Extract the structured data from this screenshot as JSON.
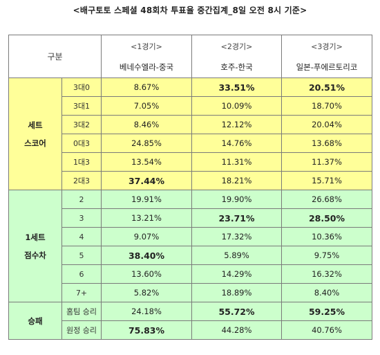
{
  "title": "<배구토토 스페셜 48회차 투표율 중간집계_8일 오전 8시 기준>",
  "header": {
    "guban": "구분",
    "games": [
      {
        "label": "<1경기>",
        "teams": "베네수엘라-중국"
      },
      {
        "label": "<2경기>",
        "teams": "호주-한국"
      },
      {
        "label": "<3경기>",
        "teams": "일본-푸에르토리코"
      }
    ]
  },
  "sections": [
    {
      "group_lines": [
        "세트",
        "스코어"
      ],
      "color": "#ffff99",
      "rows": [
        {
          "label": "3대0",
          "values": [
            "8.67%",
            "33.51%",
            "20.51%"
          ],
          "bold": [
            false,
            true,
            true
          ]
        },
        {
          "label": "3대1",
          "values": [
            "7.05%",
            "10.09%",
            "18.70%"
          ],
          "bold": [
            false,
            false,
            false
          ]
        },
        {
          "label": "3대2",
          "values": [
            "8.46%",
            "12.12%",
            "20.04%"
          ],
          "bold": [
            false,
            false,
            false
          ]
        },
        {
          "label": "0대3",
          "values": [
            "24.85%",
            "14.76%",
            "13.68%"
          ],
          "bold": [
            false,
            false,
            false
          ]
        },
        {
          "label": "1대3",
          "values": [
            "13.54%",
            "11.31%",
            "11.37%"
          ],
          "bold": [
            false,
            false,
            false
          ]
        },
        {
          "label": "2대3",
          "values": [
            "37.44%",
            "18.21%",
            "15.71%"
          ],
          "bold": [
            true,
            false,
            false
          ]
        }
      ]
    },
    {
      "group_lines": [
        "1세트",
        "점수차"
      ],
      "color": "#ccffcc",
      "rows": [
        {
          "label": "2",
          "values": [
            "19.91%",
            "19.90%",
            "26.68%"
          ],
          "bold": [
            false,
            false,
            false
          ]
        },
        {
          "label": "3",
          "values": [
            "13.21%",
            "23.71%",
            "28.50%"
          ],
          "bold": [
            false,
            true,
            true
          ]
        },
        {
          "label": "4",
          "values": [
            "9.07%",
            "17.32%",
            "10.36%"
          ],
          "bold": [
            false,
            false,
            false
          ]
        },
        {
          "label": "5",
          "values": [
            "38.40%",
            "5.89%",
            "9.75%"
          ],
          "bold": [
            true,
            false,
            false
          ]
        },
        {
          "label": "6",
          "values": [
            "13.60%",
            "14.29%",
            "16.32%"
          ],
          "bold": [
            false,
            false,
            false
          ]
        },
        {
          "label": "7+",
          "values": [
            "5.82%",
            "18.89%",
            "8.40%"
          ],
          "bold": [
            false,
            false,
            false
          ]
        }
      ]
    },
    {
      "group_lines": [
        "승패"
      ],
      "color": "#ccffcc",
      "rows": [
        {
          "label": "홈팀 승리",
          "values": [
            "24.18%",
            "55.72%",
            "59.25%"
          ],
          "bold": [
            false,
            true,
            true
          ]
        },
        {
          "label": "원정 승리",
          "values": [
            "75.83%",
            "44.28%",
            "40.76%"
          ],
          "bold": [
            true,
            false,
            false
          ]
        }
      ]
    }
  ]
}
